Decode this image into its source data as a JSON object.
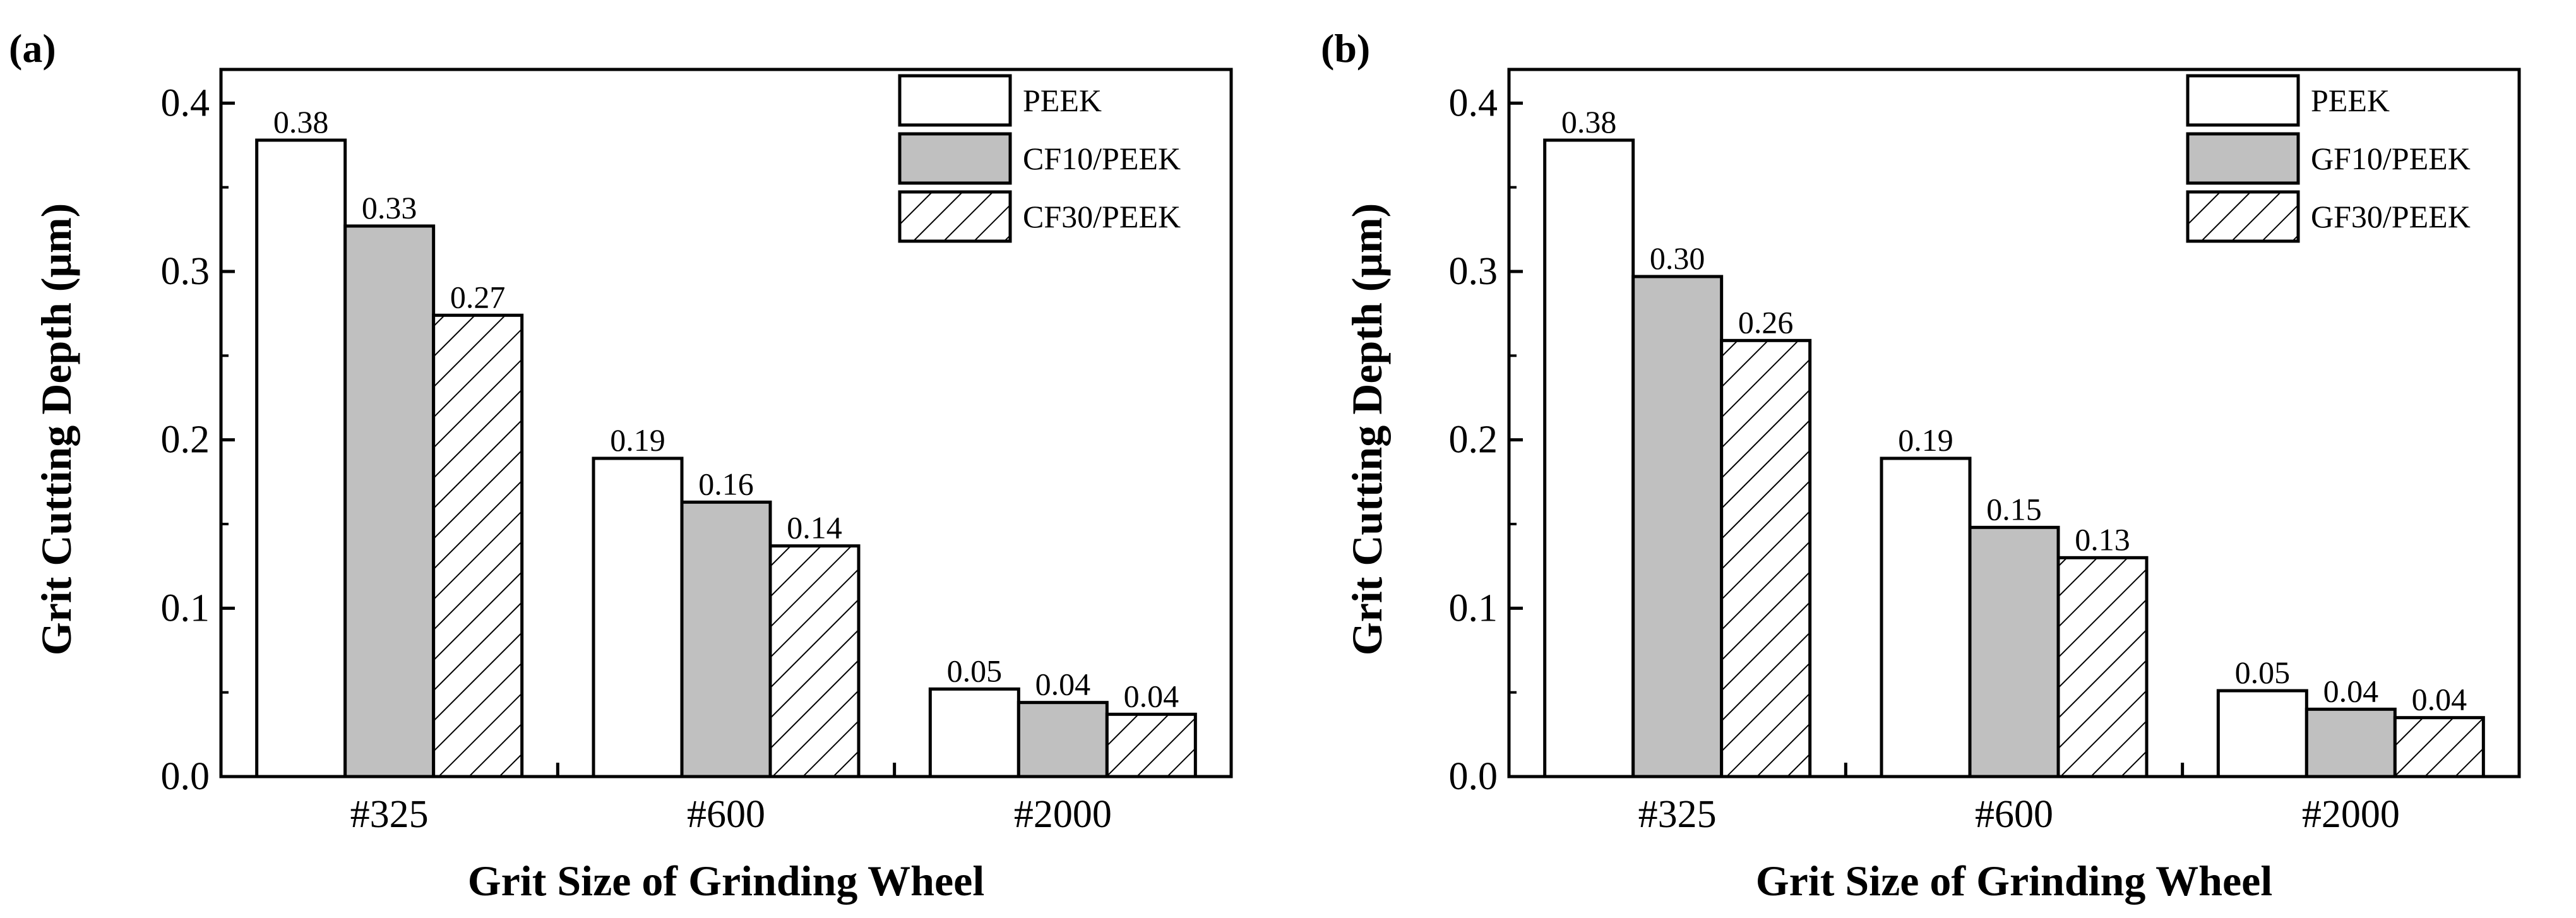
{
  "chart_data": [
    {
      "type": "bar",
      "panel_label": "(a)",
      "categories": [
        "#325",
        "#600",
        "#2000"
      ],
      "series": [
        {
          "name": "PEEK",
          "values": [
            0.378,
            0.189,
            0.052
          ],
          "labels": [
            "0.38",
            "0.19",
            "0.05"
          ],
          "fill": "#ffffff",
          "pattern": "none"
        },
        {
          "name": "CF10/PEEK",
          "values": [
            0.327,
            0.163,
            0.044
          ],
          "labels": [
            "0.33",
            "0.16",
            "0.04"
          ],
          "fill": "#c0c0c0",
          "pattern": "none"
        },
        {
          "name": "CF30/PEEK",
          "values": [
            0.274,
            0.137,
            0.037
          ],
          "labels": [
            "0.27",
            "0.14",
            "0.04"
          ],
          "fill": "#ffffff",
          "pattern": "hatch"
        }
      ],
      "xlabel": "Grit Size of Grinding Wheel",
      "ylabel": "Grit Cutting Depth (μm)",
      "ylim": [
        0,
        0.42
      ],
      "yticks": [
        "0.0",
        "0.1",
        "0.2",
        "0.3",
        "0.4"
      ],
      "legend_position": "top-right"
    },
    {
      "type": "bar",
      "panel_label": "(b)",
      "categories": [
        "#325",
        "#600",
        "#2000"
      ],
      "series": [
        {
          "name": "PEEK",
          "values": [
            0.378,
            0.189,
            0.051
          ],
          "labels": [
            "0.38",
            "0.19",
            "0.05"
          ],
          "fill": "#ffffff",
          "pattern": "none"
        },
        {
          "name": "GF10/PEEK",
          "values": [
            0.297,
            0.148,
            0.04
          ],
          "labels": [
            "0.30",
            "0.15",
            "0.04"
          ],
          "fill": "#c0c0c0",
          "pattern": "none"
        },
        {
          "name": "GF30/PEEK",
          "values": [
            0.259,
            0.13,
            0.035
          ],
          "labels": [
            "0.26",
            "0.13",
            "0.04"
          ],
          "fill": "#ffffff",
          "pattern": "hatch"
        }
      ],
      "xlabel": "Grit Size of Grinding Wheel",
      "ylabel": "Grit Cutting Depth (μm)",
      "ylim": [
        0,
        0.42
      ],
      "yticks": [
        "0.0",
        "0.1",
        "0.2",
        "0.3",
        "0.4"
      ],
      "legend_position": "top-right"
    }
  ]
}
